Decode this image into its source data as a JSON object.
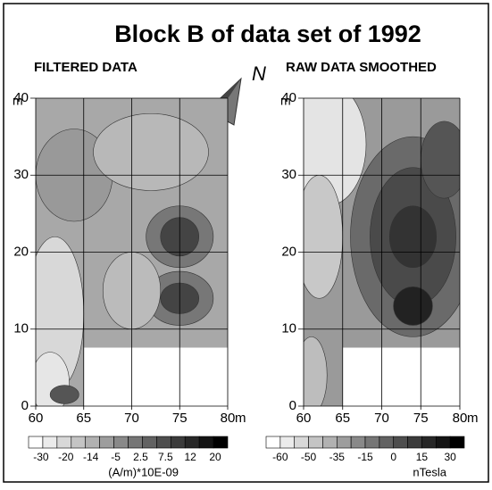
{
  "title": "Block B of data set of 1992",
  "north_label": "N",
  "chart_data": [
    {
      "type": "contour",
      "title": "FILTERED DATA",
      "xlim": [
        60,
        80
      ],
      "ylim": [
        0,
        40
      ],
      "xticks": [
        60,
        65,
        70,
        75,
        80
      ],
      "yticks": [
        0,
        10,
        20,
        30,
        40
      ],
      "xunit": "m",
      "yunit": "m",
      "colorbar": {
        "ticks": [
          -30,
          -20,
          -14,
          -5,
          2.5,
          7.5,
          12,
          20
        ],
        "label": "(A/m)*10E-09"
      }
    },
    {
      "type": "contour",
      "title": "RAW DATA SMOOTHED",
      "xlim": [
        60,
        80
      ],
      "ylim": [
        0,
        40
      ],
      "xticks": [
        60,
        65,
        70,
        75,
        80
      ],
      "yticks": [
        0,
        10,
        20,
        30,
        40
      ],
      "xunit": "m",
      "yunit": "m",
      "colorbar": {
        "ticks": [
          -60,
          -50,
          -35,
          -15,
          0,
          15,
          30
        ],
        "label": "nTesla"
      }
    }
  ]
}
